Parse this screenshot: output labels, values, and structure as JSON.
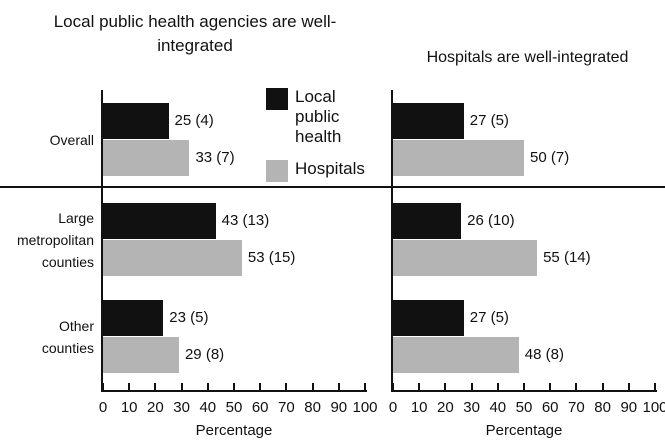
{
  "chart_data": [
    {
      "type": "bar",
      "orientation": "horizontal",
      "title": "Local public health agencies are well-integrated",
      "categories": [
        "Overall",
        "Large metropolitan counties",
        "Other counties"
      ],
      "series": [
        {
          "name": "Local public health",
          "color": "#111111",
          "values": [
            25,
            43,
            23
          ],
          "value_labels": [
            "25 (4)",
            "43 (13)",
            "23 (5)"
          ]
        },
        {
          "name": "Hospitals",
          "color": "#b4b4b4",
          "values": [
            33,
            53,
            29
          ],
          "value_labels": [
            "33 (7)",
            "53 (15)",
            "29 (8)"
          ]
        }
      ],
      "xlim": [
        0,
        100
      ],
      "xticks": [
        0,
        10,
        20,
        30,
        40,
        50,
        60,
        70,
        80,
        90,
        100
      ],
      "xlabel": "Percentage",
      "legend": true
    },
    {
      "type": "bar",
      "orientation": "horizontal",
      "title": "Hospitals are well-integrated",
      "series": [
        {
          "color": "#111111",
          "values": [
            27,
            26,
            27
          ],
          "value_labels": [
            "27 (5)",
            "26 (10)",
            "27 (5)"
          ]
        },
        {
          "color": "#b4b4b4",
          "values": [
            50,
            55,
            48
          ],
          "value_labels": [
            "50 (7)",
            "55 (14)",
            "48 (8)"
          ]
        }
      ],
      "xlim": [
        0,
        100
      ],
      "xticks": [
        0,
        10,
        20,
        30,
        40,
        50,
        60,
        70,
        80,
        90,
        100
      ],
      "xlabel": "Percentage",
      "legend": false
    }
  ]
}
